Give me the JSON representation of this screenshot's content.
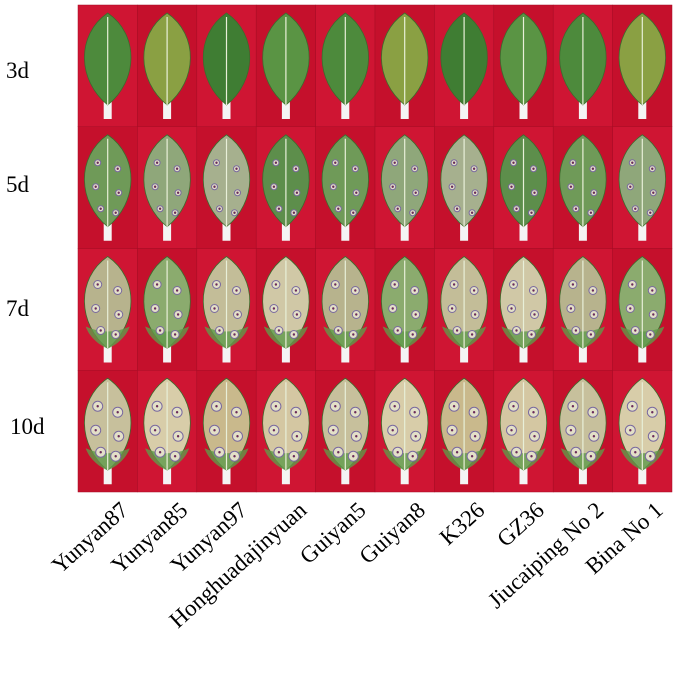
{
  "rows": [
    "3d",
    "5d",
    "7d",
    "10d"
  ],
  "columns": [
    "Yunyan87",
    "Yunyan85",
    "Yunyan97",
    "Honghuadajinyuan",
    "Guiyan5",
    "Guiyan8",
    "K326",
    "GZ36",
    "Jiucaiping No 2",
    "Bina No 1"
  ]
}
